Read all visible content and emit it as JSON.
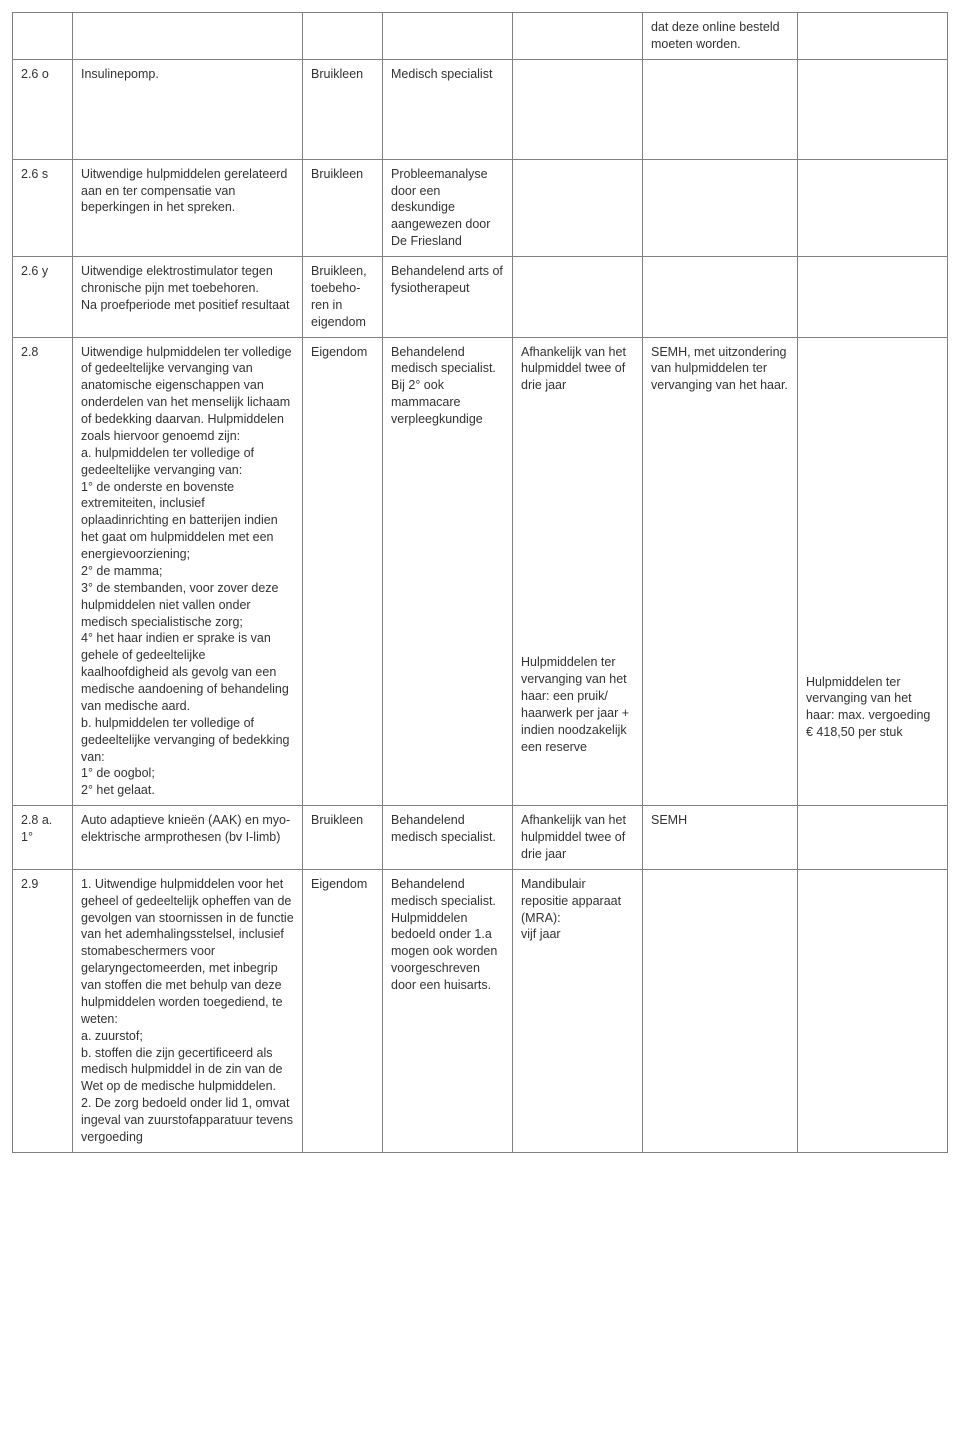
{
  "rows": [
    {
      "c1": "",
      "c2": "",
      "c3": "",
      "c4": "",
      "c5": "",
      "c6": "dat deze online besteld moeten worden.",
      "c7": ""
    },
    {
      "c1": "2.6 o",
      "c2": "Insulinepomp.",
      "c3": "Bruikleen",
      "c4": "Medisch specia­list",
      "c5": "",
      "c6": "",
      "c7": ""
    },
    {
      "c1": "2.6 s",
      "c2": "Uitwendige hulpmiddelen gerelateerd aan en ter com­pensatie van beperkingen in het spreken.",
      "c3": "Bruikleen",
      "c4": "Probleem­analyse door een deskundige aangewezen door De Fries­land",
      "c5": "",
      "c6": "",
      "c7": ""
    },
    {
      "c1": "2.6 y",
      "c2": "Uitwendige elektrostimulator tegen chronische pijn met toebehoren.\nNa proefperiode met positief resultaat",
      "c3": "Bruikleen, toebeho­ren in eigendom",
      "c4": "Behandelend arts of fysiothe­rapeut",
      "c5": "",
      "c6": "",
      "c7": ""
    },
    {
      "c1": "2.8",
      "c2": "Uitwendige hulpmiddelen ter volledige of gedeeltelijke vervanging van anatomische eigenschappen van onderde­len van het menselijk lichaam of bedekking daarvan. Hulpmiddelen zoals hiervoor genoemd zijn:\na. hulpmiddelen ter volledige of gedeeltelijke vervanging van:\n1° de onderste en bovenste extremiteiten, inclusief oplaadinrichting en batterijen indien het gaat om hulpmidde­len met een energievoorzie­ning;\n2° de mamma;\n3° de stembanden, voor zover deze hulpmiddelen niet vallen onder medisch specialistische zorg;\n4° het haar indien er sprake is van gehele of gedeeltelijke kaalhoofdigheid als gevolg van een medische aandoening of behandeling van medische aard.\nb. hulpmiddelen ter volledige of gedeeltelijke vervanging of bedekking van:\n1° de oogbol;\n2° het gelaat.",
      "c3": "Eigendom",
      "c4": "Behandelend medisch specia­list.\nBij 2° ook mammacare verpleegkundige",
      "c5a": "Afhankelijk van het hulp­middel twee of drie jaar",
      "c5b": "Hulpmiddelen ter vervanging van het haar: een pruik/ haarwerk per jaar + indien noodzakelijk een reserve",
      "c6": "SEMH, met uitzondering van hulpmiddelen ter vervanging van het haar.",
      "c7": "Hulpmiddelen ter vervanging van het haar: max. vergoeding € 418,50 per stuk"
    },
    {
      "c1": "2.8 a. 1°",
      "c2": "Auto adaptieve knieën (AAK) en myo-elektrische armpro­thesen (bv I-limb)",
      "c3": "Bruikleen",
      "c4": "Behandelend medisch specia­list.",
      "c5": "Afhankelijk van het hulp­middel twee of drie jaar",
      "c6": "SEMH",
      "c7": ""
    },
    {
      "c1": "2.9",
      "c2": "1. Uitwendige hulpmiddelen voor het geheel of gedeeltelijk opheffen van de gevolgen van stoornissen in de functie van het ademhalingsstelsel, inclusief stomabeschermers voor gelaryngectomeerden, met inbegrip van stoffen die met behulp van deze hulpmid­delen worden toegediend, te weten:\na. zuurstof;\nb. stoffen die zijn gecertifi­ceerd als medisch hulpmiddel in de zin van de Wet op de medische hulpmiddelen.\n2. De zorg bedoeld onder lid 1, omvat ingeval van zuurstofap­paratuur tevens vergoeding",
      "c3": "Eigendom",
      "c4": "Behandelend medisch specia­list.\nHulpmiddelen bedoeld onder 1.a mogen ook worden voorge­schreven door een huisarts.",
      "c5": "Mandibulair repositie apparaat (MRA):\nvijf jaar",
      "c6": "",
      "c7": ""
    }
  ]
}
